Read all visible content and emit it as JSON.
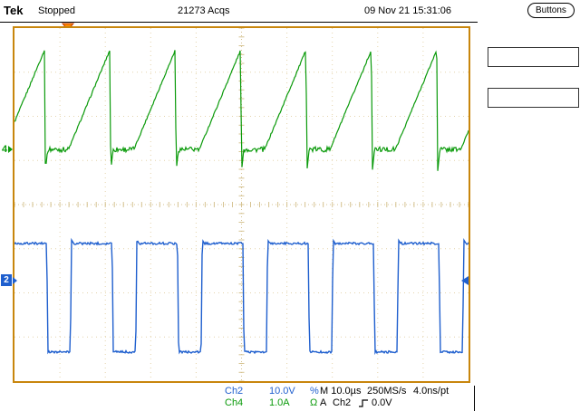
{
  "header": {
    "logo": "Tek",
    "status": "Stopped",
    "acquisitions": "21273 Acqs",
    "datetime": "09 Nov 21 15:31:06",
    "buttons_label": "Buttons"
  },
  "markers": {
    "ch4": "4",
    "ch2": "2"
  },
  "readouts": {
    "ch2_label": "Ch2",
    "ch2_scale": "10.0V",
    "ch2_suffix": "%",
    "ch4_label": "Ch4",
    "ch4_scale": "1.0A",
    "ch4_suffix": "Ω",
    "timebase": "M 10.0µs",
    "sample_rate": "250MS/s",
    "resolution": "4.0ns/pt",
    "trigger_system": "A",
    "trigger_source": "Ch2",
    "trigger_level": "0.0V"
  },
  "colors": {
    "ch2": "#1f5fce",
    "ch4": "#0a9a0a",
    "graticule_border": "#c8860d",
    "grid": "#e4d4ac",
    "grid_center": "#d6c392",
    "trigger_marker": "#ff8800",
    "trigger_marker_edge": "#c43c00"
  },
  "chart_data": {
    "type": "line",
    "title": "Oscilloscope acquisition: Ch4 sawtooth current (top), Ch2 square-wave voltage (bottom)",
    "timebase_us_per_div": 10.0,
    "sample_rate": "250MS/s",
    "resolution_per_pt": "4.0ns/pt",
    "divisions": {
      "x": 10,
      "y": 8
    },
    "series": [
      {
        "name": "Ch4",
        "units": "A",
        "scale_per_div": 1.0,
        "shape": "sawtooth",
        "period_us": 14.4,
        "first_event_us": 6.6,
        "ground_div_from_top": 2.75,
        "base": 0.0,
        "peak": 2.25,
        "undershoot": -0.5,
        "drop_us": 0.2,
        "recover_us": 0.5,
        "flat_us": 5.3,
        "noise_flat": 0.06,
        "noise_ramp": 0.02,
        "color": "#0a9a0a"
      },
      {
        "name": "Ch2",
        "units": "V",
        "scale_per_div": 10.0,
        "shape": "square",
        "period_us": 14.4,
        "fall_delay_us": 0.5,
        "ground_div_from_top": 5.72,
        "high": 8.4,
        "low": -16.2,
        "low_us": 5.2,
        "edge_us": 0.25,
        "overshoot": 0.8,
        "noise": 0.25,
        "color": "#1f5fce"
      }
    ]
  }
}
